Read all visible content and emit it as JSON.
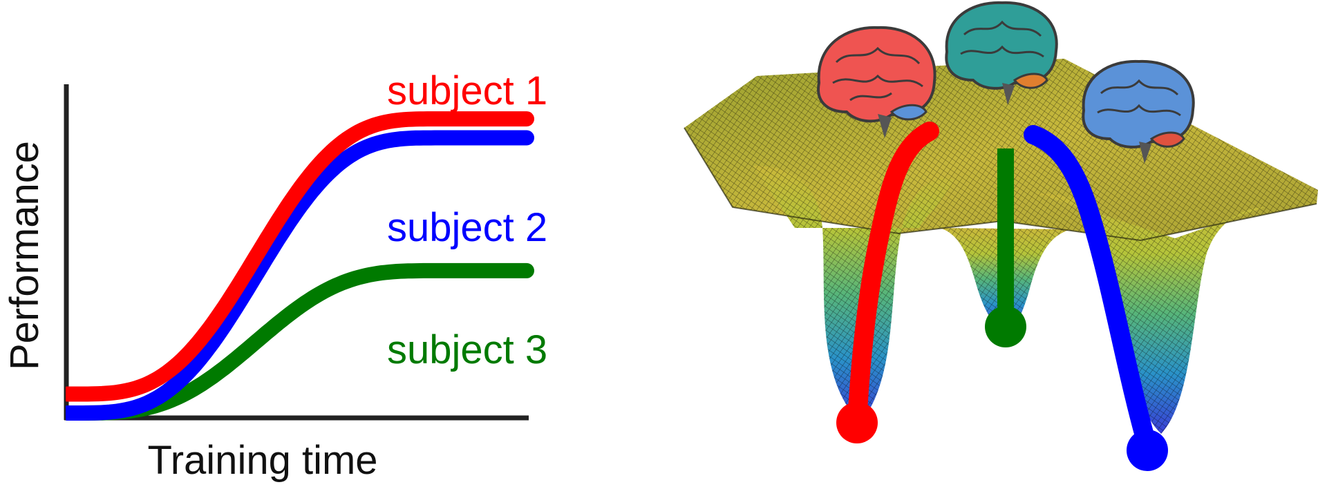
{
  "chart_data": {
    "type": "line",
    "xlabel": "Training time",
    "ylabel": "Performance",
    "series": [
      {
        "name": "subject 1",
        "color": "#ff0000",
        "start": 0.06,
        "plateau": 0.93,
        "plateau_start": 0.82
      },
      {
        "name": "subject 2",
        "color": "#0000ff",
        "start": 0.0,
        "plateau": 0.87,
        "plateau_start": 0.82
      },
      {
        "name": "subject 3",
        "color": "#007a00",
        "start": 0.0,
        "plateau": 0.45,
        "plateau_start": 0.82
      }
    ],
    "grid": false,
    "axis_ticks": false
  },
  "landscape": {
    "surface_colormap": [
      "#3a3fd6",
      "#2a8fd0",
      "#2fb59a",
      "#8fc74a",
      "#d8cf3a",
      "#c9b83a"
    ],
    "brain_colors": {
      "left": "#ef5451",
      "center": "#2f9e98",
      "right": "#5b92d8"
    },
    "trajectory_colors": {
      "left": "#ff0000",
      "center": "#007a00",
      "right": "#0000ff"
    }
  }
}
